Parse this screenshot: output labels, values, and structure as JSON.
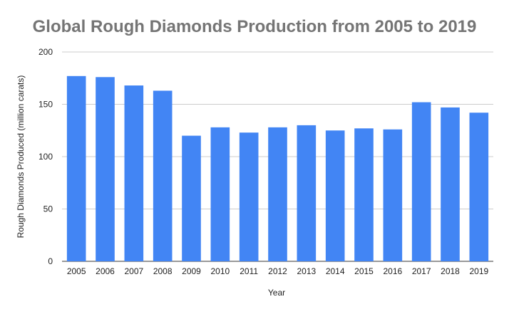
{
  "chart_data": {
    "type": "bar",
    "title": "Global Rough Diamonds Production from 2005 to 2019",
    "xlabel": "Year",
    "ylabel": "Rough Diamonds Produced (million carats)",
    "categories": [
      "2005",
      "2006",
      "2007",
      "2008",
      "2009",
      "2010",
      "2011",
      "2012",
      "2013",
      "2014",
      "2015",
      "2016",
      "2017",
      "2018",
      "2019"
    ],
    "values": [
      177,
      176,
      168,
      163,
      120,
      128,
      123,
      128,
      130,
      125,
      127,
      126,
      152,
      147,
      142
    ],
    "ylim": [
      0,
      200
    ],
    "yticks": [
      0,
      50,
      100,
      150,
      200
    ],
    "grid": true,
    "legend": "none",
    "bar_color": "#4285f4"
  }
}
